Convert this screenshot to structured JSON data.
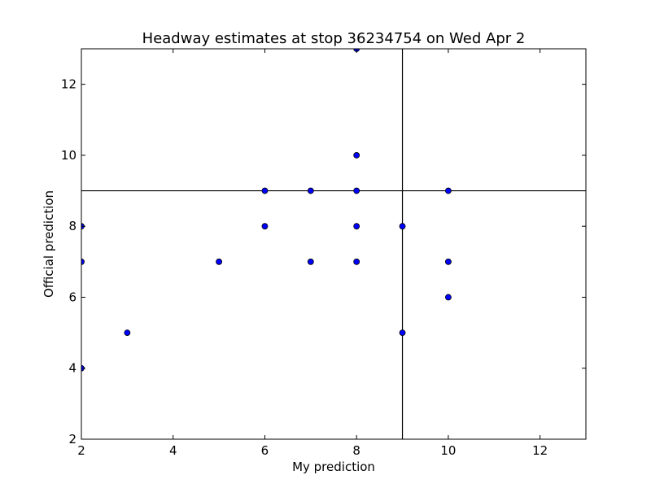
{
  "chart_data": {
    "type": "scatter",
    "title": "Headway estimates at stop 36234754 on Wed Apr 2",
    "xlabel": "My prediction",
    "ylabel": "Official prediction",
    "xlim": [
      2,
      13
    ],
    "ylim": [
      2,
      13
    ],
    "xticks": [
      2,
      4,
      6,
      8,
      10,
      12
    ],
    "yticks": [
      2,
      4,
      6,
      8,
      10,
      12
    ],
    "grid": false,
    "legend": "none",
    "reference_lines": {
      "vertical_x": 9,
      "horizontal_y": 9
    },
    "colors": {
      "point_fill": "#0000ff",
      "point_edge": "#000000",
      "axes": "#000000",
      "background": "#ffffff"
    },
    "series": [
      {
        "points": [
          {
            "x": 2,
            "y": 4
          },
          {
            "x": 2,
            "y": 7
          },
          {
            "x": 2,
            "y": 8
          },
          {
            "x": 3,
            "y": 5
          },
          {
            "x": 5,
            "y": 7
          },
          {
            "x": 6,
            "y": 8
          },
          {
            "x": 6,
            "y": 9
          },
          {
            "x": 7,
            "y": 7
          },
          {
            "x": 7,
            "y": 9
          },
          {
            "x": 8,
            "y": 7
          },
          {
            "x": 8,
            "y": 8
          },
          {
            "x": 8,
            "y": 9
          },
          {
            "x": 8,
            "y": 10
          },
          {
            "x": 8,
            "y": 13
          },
          {
            "x": 9,
            "y": 5
          },
          {
            "x": 9,
            "y": 8
          },
          {
            "x": 10,
            "y": 6
          },
          {
            "x": 10,
            "y": 7
          },
          {
            "x": 10,
            "y": 9
          }
        ]
      }
    ]
  }
}
